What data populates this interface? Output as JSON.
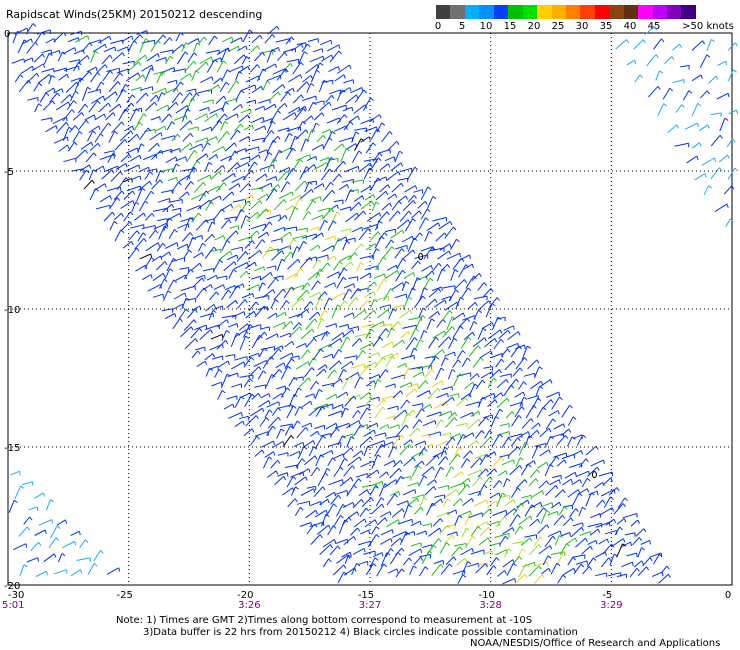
{
  "title": "Rapidscat Winds(25KM) 20150212 descending",
  "legend": {
    "colors": [
      "#404040",
      "#707070",
      "#00b0ff",
      "#0090ff",
      "#0040ff",
      "#00c000",
      "#00e000",
      "#ffd000",
      "#ffb000",
      "#ff8000",
      "#ff4000",
      "#ff0000",
      "#8b4513",
      "#603010",
      "#ff00ff",
      "#c000ff",
      "#8000c0",
      "#400080"
    ],
    "labels": [
      "0",
      "5",
      "10",
      "15",
      "20",
      "25",
      "30",
      "35",
      "40",
      "45",
      ">50 knots"
    ],
    "units": "knots"
  },
  "axes": {
    "x_ticks": [
      "-30",
      "-25",
      "-20",
      "-15",
      "-10",
      "-5",
      "0"
    ],
    "y_ticks": [
      "0",
      "-5",
      "-10",
      "-15",
      "-20"
    ],
    "lon_range": [
      -30,
      0
    ],
    "lat_range": [
      0,
      -20
    ]
  },
  "time_labels": [
    "5:01",
    "3:26",
    "3:27",
    "3:28",
    "3:29"
  ],
  "notes": {
    "line1": "Note: 1) Times are GMT 2)Times along bottom correspond to measurement at -10S",
    "line2": "3)Data buffer is 22 hrs from 20150212 4) Black circles indicate possible contamination"
  },
  "credit": "NOAA/NESDIS/Office of Research and Applications",
  "wind_colors": {
    "blue": "#0033ee",
    "lightblue": "#22aaee",
    "green": "#22bb22",
    "lightgreen": "#99dd33",
    "yellow": "#eecc22",
    "black": "#000000"
  }
}
